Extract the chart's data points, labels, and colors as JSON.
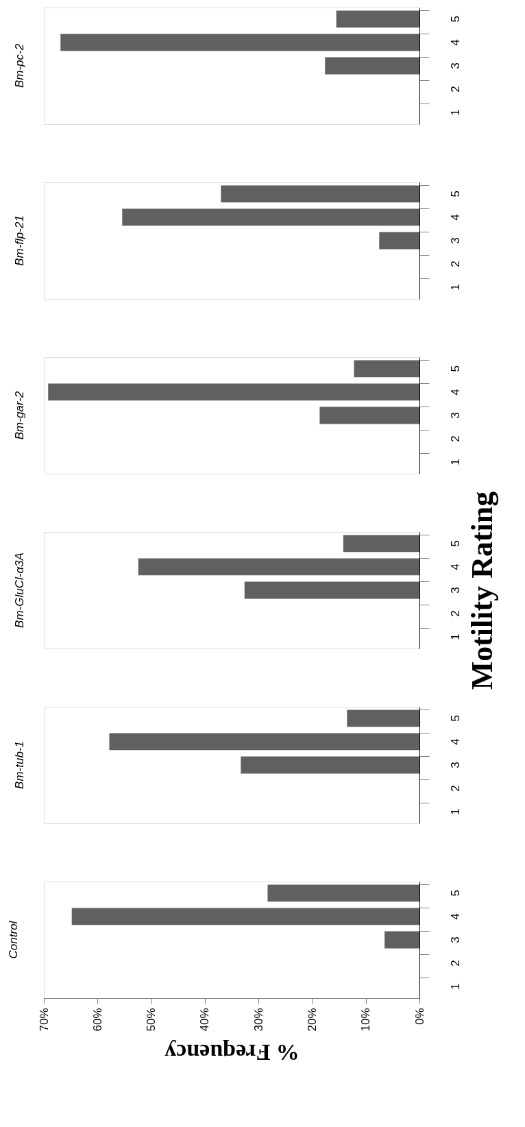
{
  "chart_data": [
    {
      "type": "bar",
      "orientation": "horizontal",
      "title": "Bm-pc-2",
      "categories": [
        "5",
        "4",
        "3",
        "2",
        "1"
      ],
      "values": [
        15.5,
        66.9,
        17.6,
        0,
        0
      ],
      "color": "#606060",
      "xlim": [
        70,
        0
      ],
      "tick_labels": "y",
      "grid": false
    },
    {
      "type": "bar",
      "orientation": "horizontal",
      "title": "Bm-flp-21",
      "categories": [
        "5",
        "4",
        "3",
        "2",
        "1"
      ],
      "values": [
        37.0,
        55.4,
        7.5,
        0,
        0
      ],
      "color": "#606060",
      "xlim": [
        70,
        0
      ],
      "tick_labels": "y",
      "grid": false
    },
    {
      "type": "bar",
      "orientation": "horizontal",
      "title": "Bm-gar-2",
      "categories": [
        "5",
        "4",
        "3",
        "2",
        "1"
      ],
      "values": [
        12.2,
        69.2,
        18.6,
        0,
        0
      ],
      "color": "#606060",
      "xlim": [
        70,
        0
      ],
      "tick_labels": "y",
      "grid": false
    },
    {
      "type": "bar",
      "orientation": "horizontal",
      "title": "Bm-GluCl-α3A",
      "ylabel": "Motility Rating",
      "categories": [
        "5",
        "4",
        "3",
        "2",
        "1"
      ],
      "values": [
        14.2,
        52.4,
        32.6,
        0,
        0
      ],
      "color": "#606060",
      "xlim": [
        70,
        0
      ],
      "tick_labels": "y",
      "grid": false
    },
    {
      "type": "bar",
      "orientation": "horizontal",
      "title": "Bm-tub-1",
      "categories": [
        "5",
        "4",
        "3",
        "2",
        "1"
      ],
      "values": [
        13.5,
        57.8,
        33.3,
        0,
        0
      ],
      "color": "#606060",
      "xlim": [
        70,
        0
      ],
      "tick_labels": "y",
      "grid": false
    },
    {
      "type": "bar",
      "orientation": "horizontal",
      "title": "Control",
      "xlabel": "% Frequency",
      "categories": [
        "5",
        "4",
        "3",
        "2",
        "1"
      ],
      "values": [
        28.3,
        64.8,
        6.5,
        0,
        0
      ],
      "color": "#606060",
      "xlim": [
        70,
        0
      ],
      "xticks": [
        {
          "value": 70,
          "label": "70%"
        },
        {
          "value": 60,
          "label": "60%"
        },
        {
          "value": 50,
          "label": "50%"
        },
        {
          "value": 40,
          "label": "40%"
        },
        {
          "value": 30,
          "label": "30%"
        },
        {
          "value": 20,
          "label": "20%"
        },
        {
          "value": 10,
          "label": "10%"
        },
        {
          "value": 0,
          "label": "0%"
        }
      ],
      "grid": false
    }
  ]
}
